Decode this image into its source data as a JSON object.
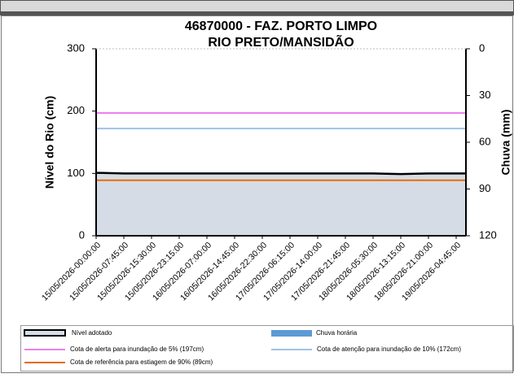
{
  "chart_data": {
    "type": "area",
    "title": "46870000 - FAZ. PORTO LIMPO",
    "subtitle": "RIO PRETO/MANSIDÃO",
    "y_label": "Nível do Rio (cm)",
    "y2_label": "Chuva (mm)",
    "categories": [
      "15/05/2026-00:00:00",
      "15/05/2026-07:45:00",
      "15/05/2026-15:30:00",
      "15/05/2026-23:15:00",
      "16/05/2026-07:00:00",
      "16/05/2026-14:45:00",
      "16/05/2026-22:30:00",
      "17/05/2026-06:15:00",
      "17/05/2026-14:00:00",
      "17/05/2026-21:45:00",
      "18/05/2026-05:30:00",
      "18/05/2026-13:15:00",
      "18/05/2026-21:00:00",
      "19/05/2026-04:45:00"
    ],
    "series": [
      {
        "name": "Nível adotado",
        "type": "area",
        "color": "#d6dce5",
        "values": [
          101,
          100,
          100,
          100,
          100,
          100,
          100,
          100,
          100,
          100,
          100,
          99,
          100,
          100
        ]
      },
      {
        "name": "Chuva horária",
        "type": "bar",
        "axis": "y2",
        "color": "#5b9bd5",
        "values": [
          0,
          0,
          0,
          0,
          0,
          0,
          0,
          0,
          0,
          0,
          0,
          0,
          0,
          0
        ]
      }
    ],
    "reference_lines": [
      {
        "name": "Cota de alerta  para inundação de 5% (197cm)",
        "value": 197,
        "color": "#f07ff0"
      },
      {
        "name": "Cota de atenção  para inundação de 10% (172cm)",
        "value": 172,
        "color": "#9dc3e6"
      },
      {
        "name": "Cota de referência  para estiagem de 90% (89cm)",
        "value": 89,
        "color": "#e46c0a"
      }
    ],
    "ylim": [
      0,
      300
    ],
    "yticks": [
      0,
      100,
      200,
      300
    ],
    "y2lim": [
      120,
      0
    ],
    "y2ticks": [
      0,
      30,
      60,
      90,
      120
    ]
  }
}
